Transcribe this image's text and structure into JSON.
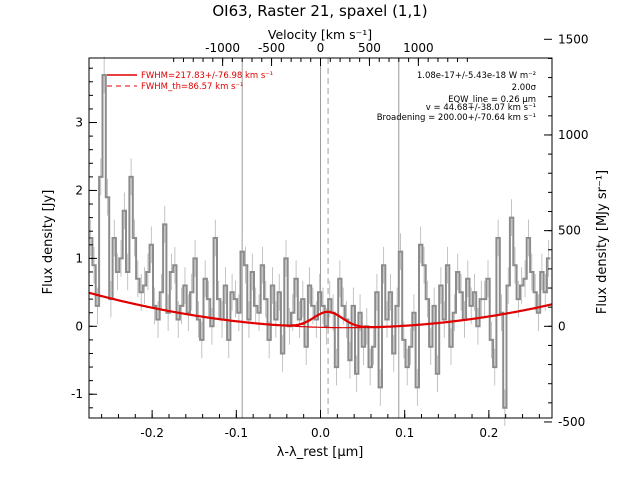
{
  "chart_data": {
    "type": "line",
    "title": "OI63, Raster 21, spaxel (1,1)",
    "xlabel": "λ-λ_rest [μm]",
    "ylabel": "Flux density [Jy]",
    "y2label": "Flux density [MJy sr⁻¹]",
    "top_axis_label": "Velocity [km s⁻¹]",
    "xlim": [
      -0.275,
      0.275
    ],
    "ylim": [
      -1.35,
      3.95
    ],
    "x_ticks": [
      "-0.2",
      "-0.1",
      "0.0",
      "0.1",
      "0.2"
    ],
    "x_tick_values": [
      -0.2,
      -0.1,
      0.0,
      0.1,
      0.2
    ],
    "y_ticks": [
      "-1",
      "0",
      "1",
      "2",
      "3"
    ],
    "y_tick_values": [
      -1,
      0,
      1,
      2,
      3
    ],
    "top_ticks": [
      "-1000",
      "-500",
      "0",
      "500",
      "1000"
    ],
    "top_tick_values": [
      -1000,
      -500,
      0,
      500,
      1000
    ],
    "right_ticks": [
      "-500",
      "0",
      "500",
      "1000",
      "1500"
    ],
    "right_tick_values": [
      -500,
      0,
      500,
      1000,
      1500
    ],
    "vertical_lines": [
      -0.093,
      0.0,
      0.093
    ],
    "dashed_line": 0.009,
    "legend": [
      {
        "label": "FWHM=217.83+/-76.98 km s⁻¹",
        "style": "solid"
      },
      {
        "label": "FWHM_th=86.57 km s⁻¹",
        "style": "dashed"
      }
    ],
    "annotations": [
      "1.08e-17+/-5.43e-18 W m⁻²",
      "2.00σ",
      "EQW_line = 0.26 μm",
      "v = 44.68+/-38.07 km s⁻¹",
      "Broadening = 200.00+/-70.64 km s⁻¹"
    ],
    "colors": {
      "data": "#8c8c8c",
      "fit": "#e00000",
      "errorbar": "#b4b4b4"
    },
    "series": [
      {
        "x": [
          -0.273,
          -0.269,
          -0.265,
          -0.261,
          -0.257,
          -0.253,
          -0.249,
          -0.245,
          -0.241,
          -0.237,
          -0.233,
          -0.229,
          -0.225,
          -0.221,
          -0.217,
          -0.213,
          -0.209,
          -0.205,
          -0.201,
          -0.197,
          -0.193,
          -0.189,
          -0.185,
          -0.181,
          -0.177,
          -0.173,
          -0.169,
          -0.165,
          -0.161,
          -0.157,
          -0.153,
          -0.149,
          -0.145,
          -0.141,
          -0.137,
          -0.133,
          -0.129,
          -0.125,
          -0.121,
          -0.117,
          -0.113,
          -0.109,
          -0.105,
          -0.101,
          -0.097,
          -0.093,
          -0.089,
          -0.085,
          -0.081,
          -0.077,
          -0.073,
          -0.069,
          -0.065,
          -0.061,
          -0.057,
          -0.053,
          -0.049,
          -0.045,
          -0.041,
          -0.037,
          -0.033,
          -0.029,
          -0.025,
          -0.021,
          -0.017,
          -0.013,
          -0.009,
          -0.005,
          -0.001,
          0.003,
          0.007,
          0.011,
          0.015,
          0.019,
          0.023,
          0.027,
          0.031,
          0.035,
          0.039,
          0.043,
          0.047,
          0.051,
          0.055,
          0.059,
          0.063,
          0.067,
          0.071,
          0.075,
          0.079,
          0.083,
          0.087,
          0.091,
          0.095,
          0.099,
          0.103,
          0.107,
          0.111,
          0.115,
          0.119,
          0.123,
          0.127,
          0.131,
          0.135,
          0.139,
          0.143,
          0.147,
          0.151,
          0.155,
          0.159,
          0.163,
          0.167,
          0.171,
          0.175,
          0.179,
          0.183,
          0.187,
          0.191,
          0.195,
          0.199,
          0.203,
          0.207,
          0.211,
          0.215,
          0.219,
          0.223,
          0.227,
          0.231,
          0.235,
          0.239,
          0.243,
          0.247,
          0.251,
          0.255,
          0.259,
          0.263,
          0.267,
          0.271
        ],
        "y": [
          1.3,
          0.9,
          0.3,
          2.2,
          3.7,
          1.9,
          0.4,
          1.3,
          0.8,
          1.0,
          1.7,
          0.8,
          2.2,
          1.3,
          0.7,
          0.5,
          0.6,
          0.8,
          1.2,
          0.3,
          0.1,
          0.5,
          1.5,
          0.2,
          0.8,
          0.9,
          0.1,
          0.3,
          0.6,
          0.2,
          0.5,
          1.0,
          0.1,
          -0.2,
          0.7,
          0.4,
          0.0,
          1.3,
          0.4,
          0.1,
          0.6,
          -0.2,
          0.5,
          0.4,
          0.2,
          1.1,
          0.9,
          0.1,
          0.8,
          0.3,
          0.2,
          0.9,
          0.4,
          -0.2,
          0.6,
          0.1,
          0.5,
          -0.4,
          1.0,
          0.0,
          0.2,
          0.7,
          0.1,
          0.4,
          -0.3,
          0.6,
          0.3,
          0.1,
          0.5,
          0.3,
          0.0,
          0.4,
          0.2,
          -0.6,
          0.7,
          0.3,
          0.1,
          -0.5,
          0.3,
          -0.7,
          0.2,
          -0.3,
          0.0,
          -0.6,
          -0.3,
          0.5,
          -0.9,
          0.9,
          0.1,
          0.5,
          -0.4,
          0.3,
          1.1,
          -0.2,
          -0.6,
          -0.3,
          0.2,
          -0.9,
          1.2,
          0.9,
          0.4,
          -0.3,
          0.3,
          -0.7,
          0.6,
          0.1,
          0.9,
          -0.3,
          0.2,
          0.8,
          0.5,
          0.1,
          0.7,
          0.3,
          0.5,
          0.0,
          0.4,
          0.4,
          0.7,
          -0.2,
          -0.6,
          1.3,
          0.2,
          -1.2,
          0.6,
          1.6,
          0.9,
          0.4,
          0.6,
          0.7,
          1.3,
          0.8,
          0.5,
          0.2,
          0.8,
          0.5,
          1.0
        ]
      }
    ]
  }
}
